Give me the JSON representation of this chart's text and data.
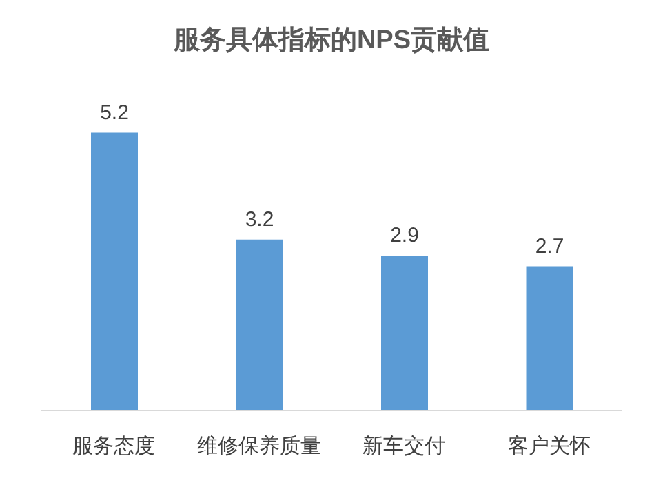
{
  "chart_data": {
    "type": "bar",
    "title": "服务具体指标的NPS贡献值",
    "categories": [
      "服务态度",
      "维修保养质量",
      "新车交付",
      "客户关怀"
    ],
    "values": [
      5.2,
      3.2,
      2.9,
      2.7
    ],
    "color": "#5b9bd5",
    "data_labels": true
  }
}
